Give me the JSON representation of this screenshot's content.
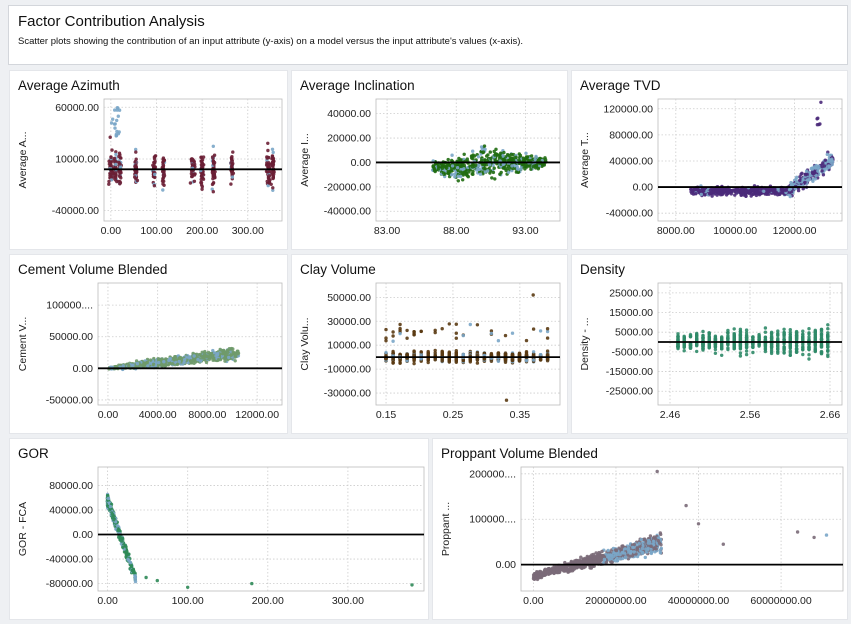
{
  "header": {
    "title": "Factor Contribution Analysis",
    "subtitle": "Scatter plots showing the contribution of an input attribute (y-axis) on a model versus the input attribute's values (x-axis)."
  },
  "chart_data": [
    {
      "type": "scatter",
      "title": "Average Azimuth",
      "xlabel": "Average Azimuth",
      "ylabel": "Average A...",
      "xlim": [
        -15,
        375
      ],
      "ylim": [
        -50000,
        68000
      ],
      "xticks": [
        0,
        100,
        200,
        300
      ],
      "xtick_labels": [
        "0.00",
        "100.00",
        "200.00",
        "300.00"
      ],
      "yticks": [
        60000,
        10000,
        -40000
      ],
      "ytick_labels": [
        "60000.00",
        "10000.00",
        "-40000.00"
      ],
      "colors": [
        "#6b1f35",
        "#7aa6c8"
      ]
    },
    {
      "type": "scatter",
      "title": "Average Inclination",
      "xlabel": "Average Inclination",
      "ylabel": "Average I...",
      "xlim": [
        82.2,
        95.5
      ],
      "ylim": [
        -48000,
        52000
      ],
      "xticks": [
        83,
        88,
        93
      ],
      "xtick_labels": [
        "83.00",
        "88.00",
        "93.00"
      ],
      "yticks": [
        40000,
        20000,
        0,
        -20000,
        -40000
      ],
      "ytick_labels": [
        "40000.00",
        "20000.00",
        "0.00",
        "-20000.00",
        "-40000.00"
      ],
      "colors": [
        "#1f6b10",
        "#7aa6c8"
      ]
    },
    {
      "type": "scatter",
      "title": "Average TVD",
      "xlabel": "Average TVD",
      "ylabel": "Average T...",
      "xlim": [
        7400,
        13600
      ],
      "ylim": [
        -52000,
        135000
      ],
      "xticks": [
        8000,
        10000,
        12000
      ],
      "xtick_labels": [
        "8000.00",
        "10000.00",
        "12000.00"
      ],
      "yticks": [
        120000,
        80000,
        40000,
        0,
        -40000
      ],
      "ytick_labels": [
        "120000.00",
        "80000.00",
        "40000.00",
        "0.00",
        "-40000.00"
      ],
      "colors": [
        "#4b2a7a",
        "#7aa6c8"
      ]
    },
    {
      "type": "scatter",
      "title": "Cement Volume Blended",
      "xlabel": "Cement Volume Blended",
      "ylabel": "Cement V...",
      "xlim": [
        -800,
        14000
      ],
      "ylim": [
        -58000,
        135000
      ],
      "xticks": [
        0,
        4000,
        8000,
        12000
      ],
      "xtick_labels": [
        "0.00",
        "4000.00",
        "8000.00",
        "12000.00"
      ],
      "yticks": [
        100000,
        50000,
        0,
        -50000
      ],
      "ytick_labels": [
        "100000....",
        "50000.00",
        "0.00",
        "-50000.00"
      ],
      "colors": [
        "#6f9a6a",
        "#7aa6c8"
      ]
    },
    {
      "type": "scatter",
      "title": "Clay Volume",
      "xlabel": "Clay Volume",
      "ylabel": "Clay Volu...",
      "xlim": [
        0.135,
        0.41
      ],
      "ylim": [
        -40000,
        62000
      ],
      "xticks": [
        0.15,
        0.25,
        0.35
      ],
      "xtick_labels": [
        "0.15",
        "0.25",
        "0.35"
      ],
      "yticks": [
        50000,
        30000,
        10000,
        -10000,
        -30000
      ],
      "ytick_labels": [
        "50000.00",
        "30000.00",
        "10000.00",
        "-10000.00",
        "-30000.00"
      ],
      "colors": [
        "#5a3a12",
        "#7aa6c8"
      ]
    },
    {
      "type": "scatter",
      "title": "Density",
      "xlabel": "Density",
      "ylabel": "Density - ...",
      "xlim": [
        2.445,
        2.675
      ],
      "ylim": [
        -32000,
        30000
      ],
      "xticks": [
        2.46,
        2.56,
        2.66
      ],
      "xtick_labels": [
        "2.46",
        "2.56",
        "2.66"
      ],
      "yticks": [
        25000,
        15000,
        5000,
        -5000,
        -15000,
        -25000
      ],
      "ytick_labels": [
        "25000.00",
        "15000.00",
        "5000.00",
        "-5000.00",
        "-15000.00",
        "-25000.00"
      ],
      "colors": [
        "#2f8a68"
      ]
    },
    {
      "type": "scatter",
      "title": "GOR",
      "xlabel": "GOR",
      "ylabel": "GOR - FCA",
      "xlim": [
        -12,
        395
      ],
      "ylim": [
        -92000,
        110000
      ],
      "xticks": [
        0,
        100,
        200,
        300
      ],
      "xtick_labels": [
        "0.00",
        "100.00",
        "200.00",
        "300.00"
      ],
      "yticks": [
        80000,
        40000,
        0,
        -40000,
        -80000
      ],
      "ytick_labels": [
        "80000.00",
        "40000.00",
        "0.00",
        "-40000.00",
        "-80000.00"
      ],
      "colors": [
        "#2f8a58",
        "#7aa6c8"
      ]
    },
    {
      "type": "scatter",
      "title": "Proppant Volume Blended",
      "xlabel": "Proppant Volume Blended",
      "ylabel": "Proppant ...",
      "xlim": [
        -3000000,
        75000000
      ],
      "ylim": [
        -58000,
        215000
      ],
      "xticks": [
        0,
        20000000,
        40000000,
        60000000
      ],
      "xtick_labels": [
        "0.00",
        "20000000.00",
        "40000000.00",
        "60000000.00"
      ],
      "yticks": [
        200000,
        100000,
        0
      ],
      "ytick_labels": [
        "200000....",
        "100000....",
        "0.00"
      ],
      "colors": [
        "#7a6a78",
        "#7aa6c8"
      ]
    }
  ]
}
